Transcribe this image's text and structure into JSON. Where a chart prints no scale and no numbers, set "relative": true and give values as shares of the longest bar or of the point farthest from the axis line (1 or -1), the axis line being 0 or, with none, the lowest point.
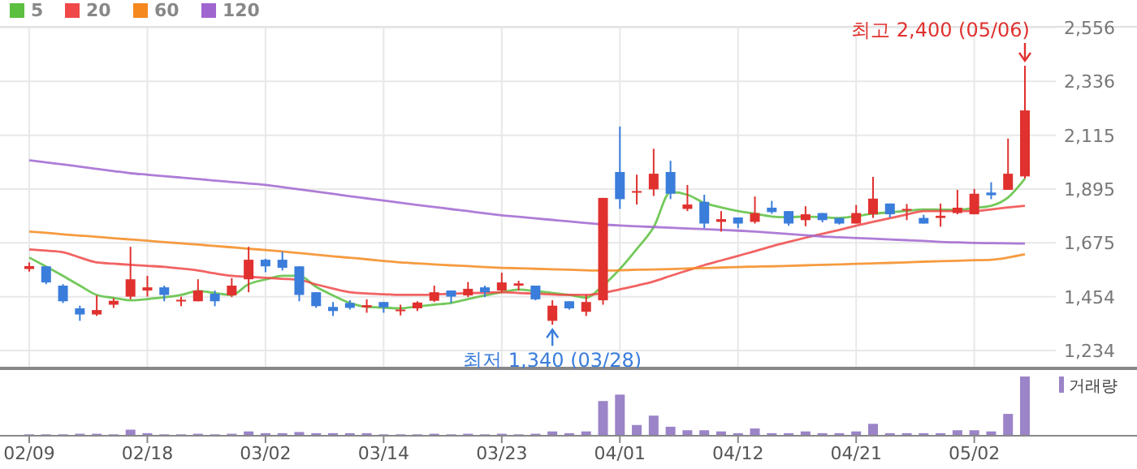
{
  "chart_data": [
    {
      "type": "candlestick",
      "categories": [
        null,
        null,
        null,
        null,
        null,
        null,
        null,
        null,
        null,
        null,
        null,
        null,
        null,
        null,
        null,
        null,
        null,
        null,
        null,
        null,
        null,
        null,
        null,
        null,
        null,
        null,
        null,
        null,
        null,
        null,
        null,
        null,
        null,
        null,
        null,
        null,
        null,
        null,
        null,
        null,
        null,
        null,
        null,
        null,
        null,
        null,
        null,
        null,
        null,
        null,
        null,
        null,
        null,
        null,
        null,
        null,
        null,
        null,
        null,
        null
      ],
      "ohlc": [
        [
          1568,
          1595,
          1557,
          1580
        ],
        [
          1579,
          1579,
          1506,
          1513
        ],
        [
          1500,
          1506,
          1429,
          1436
        ],
        [
          1407,
          1418,
          1356,
          1382
        ],
        [
          1382,
          1460,
          1376,
          1400
        ],
        [
          1422,
          1449,
          1409,
          1438
        ],
        [
          1455,
          1659,
          1444,
          1526
        ],
        [
          1480,
          1540,
          1455,
          1493
        ],
        [
          1493,
          1500,
          1436,
          1462
        ],
        [
          1438,
          1455,
          1416,
          1442
        ],
        [
          1436,
          1526,
          1436,
          1480
        ],
        [
          1467,
          1480,
          1416,
          1436
        ],
        [
          1460,
          1531,
          1453,
          1500
        ],
        [
          1526,
          1659,
          1473,
          1606
        ],
        [
          1606,
          1610,
          1555,
          1579
        ],
        [
          1606,
          1639,
          1562,
          1573
        ],
        [
          1579,
          1579,
          1436,
          1462
        ],
        [
          1473,
          1473,
          1409,
          1416
        ],
        [
          1413,
          1433,
          1376,
          1396
        ],
        [
          1429,
          1440,
          1402,
          1409
        ],
        [
          1411,
          1444,
          1389,
          1420
        ],
        [
          1433,
          1433,
          1389,
          1411
        ],
        [
          1396,
          1422,
          1378,
          1402
        ],
        [
          1407,
          1436,
          1396,
          1431
        ],
        [
          1438,
          1500,
          1433,
          1473
        ],
        [
          1480,
          1480,
          1429,
          1455
        ],
        [
          1460,
          1515,
          1453,
          1487
        ],
        [
          1493,
          1500,
          1453,
          1473
        ],
        [
          1480,
          1553,
          1473,
          1513
        ],
        [
          1500,
          1520,
          1480,
          1509
        ],
        [
          1500,
          1500,
          1440,
          1444
        ],
        [
          1356,
          1440,
          1340,
          1418
        ],
        [
          1436,
          1436,
          1402,
          1407
        ],
        [
          1393,
          1462,
          1376,
          1433
        ],
        [
          1440,
          1859,
          1422,
          1859
        ],
        [
          1965,
          2151,
          1814,
          1854
        ],
        [
          1881,
          1954,
          1832,
          1887
        ],
        [
          1894,
          2060,
          1867,
          1958
        ],
        [
          1965,
          2011,
          1854,
          1876
        ],
        [
          1814,
          1912,
          1805,
          1832
        ],
        [
          1843,
          1872,
          1735,
          1754
        ],
        [
          1761,
          1805,
          1721,
          1772
        ],
        [
          1779,
          1779,
          1735,
          1754
        ],
        [
          1761,
          1865,
          1754,
          1797
        ],
        [
          1819,
          1847,
          1794,
          1801
        ],
        [
          1805,
          1805,
          1745,
          1754
        ],
        [
          1768,
          1825,
          1743,
          1792
        ],
        [
          1797,
          1797,
          1759,
          1768
        ],
        [
          1777,
          1777,
          1750,
          1754
        ],
        [
          1754,
          1830,
          1754,
          1797
        ],
        [
          1792,
          1945,
          1777,
          1856
        ],
        [
          1836,
          1836,
          1779,
          1792
        ],
        [
          1810,
          1834,
          1768,
          1814
        ],
        [
          1777,
          1790,
          1754,
          1754
        ],
        [
          1777,
          1836,
          1741,
          1786
        ],
        [
          1797,
          1892,
          1792,
          1819
        ],
        [
          1792,
          1896,
          1792,
          1876
        ],
        [
          1881,
          1923,
          1854,
          1870
        ],
        [
          1892,
          2102,
          1892,
          1958
        ],
        [
          1947,
          2400,
          1938,
          2217
        ]
      ],
      "series": [
        {
          "name": "5",
          "type": "line",
          "color": "#5cbf3f",
          "values": [
            1615,
            1578,
            1540,
            1500,
            1462,
            1450,
            1440,
            1445,
            1452,
            1462,
            1478,
            1470,
            1462,
            1506,
            1525,
            1540,
            1540,
            1495,
            1460,
            1429,
            1413,
            1410,
            1407,
            1415,
            1422,
            1429,
            1445,
            1460,
            1473,
            1484,
            1478,
            1470,
            1462,
            1451,
            1500,
            1568,
            1650,
            1739,
            1883,
            1872,
            1839,
            1820,
            1805,
            1794,
            1783,
            1780,
            1783,
            1780,
            1777,
            1785,
            1794,
            1800,
            1806,
            1812,
            1811,
            1810,
            1818,
            1827,
            1861,
            1938
          ]
        },
        {
          "name": "20",
          "type": "line",
          "color": "#f04848",
          "values": [
            1648,
            1643,
            1637,
            1615,
            1595,
            1590,
            1585,
            1581,
            1577,
            1570,
            1562,
            1550,
            1540,
            1536,
            1532,
            1528,
            1524,
            1505,
            1488,
            1473,
            1468,
            1465,
            1462,
            1462,
            1464,
            1467,
            1469,
            1471,
            1473,
            1470,
            1467,
            1464,
            1462,
            1462,
            1470,
            1485,
            1500,
            1517,
            1540,
            1562,
            1584,
            1603,
            1622,
            1641,
            1661,
            1679,
            1696,
            1712,
            1728,
            1745,
            1761,
            1776,
            1791,
            1805,
            1805,
            1805,
            1805,
            1812,
            1820,
            1827
          ]
        },
        {
          "name": "60",
          "type": "line",
          "color": "#f5891e",
          "values": [
            1721,
            1716,
            1710,
            1705,
            1700,
            1694,
            1689,
            1684,
            1678,
            1673,
            1668,
            1662,
            1657,
            1651,
            1646,
            1640,
            1633,
            1627,
            1620,
            1614,
            1608,
            1601,
            1595,
            1591,
            1587,
            1583,
            1580,
            1576,
            1573,
            1571,
            1569,
            1567,
            1565,
            1563,
            1562,
            1563,
            1565,
            1566,
            1568,
            1570,
            1572,
            1574,
            1576,
            1578,
            1579,
            1581,
            1583,
            1585,
            1587,
            1589,
            1591,
            1593,
            1595,
            1598,
            1600,
            1602,
            1604,
            1606,
            1615,
            1628
          ]
        },
        {
          "name": "120",
          "type": "line",
          "color": "#a066d0",
          "values": [
            2013,
            2004,
            1996,
            1987,
            1978,
            1969,
            1960,
            1954,
            1948,
            1942,
            1936,
            1930,
            1924,
            1918,
            1912,
            1903,
            1894,
            1885,
            1876,
            1866,
            1857,
            1848,
            1839,
            1830,
            1822,
            1813,
            1805,
            1796,
            1788,
            1782,
            1775,
            1769,
            1763,
            1756,
            1750,
            1746,
            1743,
            1740,
            1737,
            1734,
            1731,
            1728,
            1725,
            1721,
            1716,
            1711,
            1706,
            1701,
            1698,
            1695,
            1692,
            1689,
            1686,
            1683,
            1679,
            1677,
            1675,
            1674,
            1673,
            1672
          ]
        }
      ],
      "ylim": [
        1168,
        2556
      ],
      "yticks": [
        {
          "value": 1234,
          "label": "1,234"
        },
        {
          "value": 1454,
          "label": "1,454"
        },
        {
          "value": 1675,
          "label": "1,675"
        },
        {
          "value": 1895,
          "label": "1,895"
        },
        {
          "value": 2115,
          "label": "2,115"
        },
        {
          "value": 2336,
          "label": "2,336"
        },
        {
          "value": 2556,
          "label": "2,556"
        }
      ],
      "grid": true,
      "legend": "top left",
      "tick_labels": "y",
      "annotations": [
        "최고 2,400 (05/06)",
        "최저 1,340 (03/28)"
      ]
    },
    {
      "type": "bar",
      "categories": [
        "02/09",
        null,
        null,
        null,
        null,
        null,
        null,
        "02/18",
        null,
        null,
        null,
        null,
        null,
        null,
        "03/02",
        null,
        null,
        null,
        null,
        null,
        null,
        "03/14",
        null,
        null,
        null,
        null,
        null,
        null,
        "03/23",
        null,
        null,
        null,
        null,
        null,
        null,
        "04/01",
        null,
        null,
        null,
        null,
        null,
        null,
        "04/12",
        null,
        null,
        null,
        null,
        null,
        null,
        "04/21",
        null,
        null,
        null,
        null,
        null,
        null,
        "05/02",
        null,
        null,
        null
      ],
      "series": [
        {
          "name": "거래량",
          "color": "#9b84c8",
          "values": [
            0.01,
            0.01,
            0.01,
            0.02,
            0.02,
            0.01,
            0.09,
            0.03,
            0.01,
            0.01,
            0.02,
            0.01,
            0.02,
            0.06,
            0.03,
            0.03,
            0.05,
            0.03,
            0.03,
            0.03,
            0.03,
            0.01,
            0.01,
            0.01,
            0.02,
            0.01,
            0.02,
            0.01,
            0.02,
            0.01,
            0.02,
            0.06,
            0.03,
            0.06,
            0.58,
            0.69,
            0.17,
            0.33,
            0.14,
            0.08,
            0.08,
            0.06,
            0.03,
            0.11,
            0.03,
            0.03,
            0.06,
            0.03,
            0.03,
            0.06,
            0.19,
            0.03,
            0.03,
            0.03,
            0.03,
            0.08,
            0.08,
            0.06,
            0.36,
            1
          ]
        }
      ],
      "relative": true,
      "legend": "top right",
      "tick_labels": "x"
    }
  ]
}
